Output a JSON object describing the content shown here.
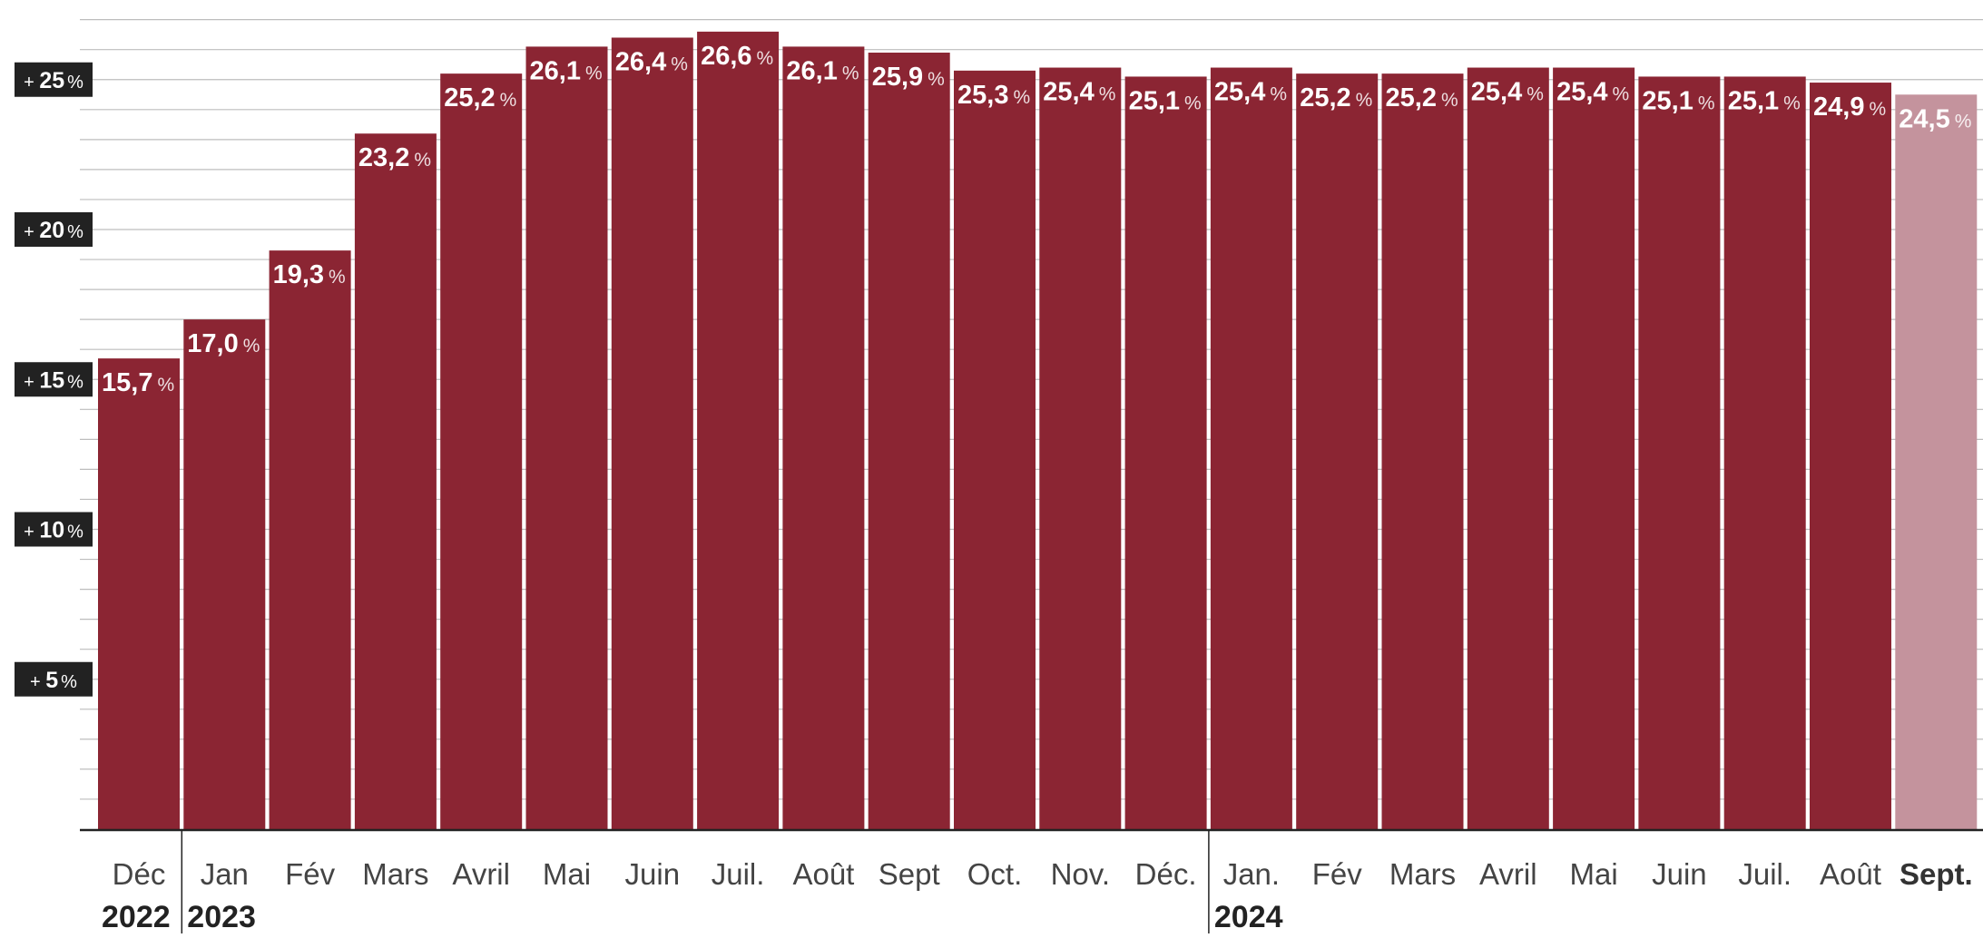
{
  "chart_data": {
    "type": "bar",
    "categories": [
      "Déc",
      "Jan",
      "Fév",
      "Mars",
      "Avril",
      "Mai",
      "Juin",
      "Juil.",
      "Août",
      "Sept",
      "Oct.",
      "Nov.",
      "Déc.",
      "Jan.",
      "Fév",
      "Mars",
      "Avril",
      "Mai",
      "Juin",
      "Juil.",
      "Août",
      "Sept."
    ],
    "values": [
      15.7,
      17.0,
      19.3,
      23.2,
      25.2,
      26.1,
      26.4,
      26.6,
      26.1,
      25.9,
      25.3,
      25.4,
      25.1,
      25.4,
      25.2,
      25.2,
      25.4,
      25.4,
      25.1,
      25.1,
      24.9,
      24.5
    ],
    "value_labels": [
      "15,7",
      "17,0",
      "19,3",
      "23,2",
      "25,2",
      "26,1",
      "26,4",
      "26,6",
      "26,1",
      "25,9",
      "25,3",
      "25,4",
      "25,1",
      "25,4",
      "25,2",
      "25,2",
      "25,4",
      "25,4",
      "25,1",
      "25,1",
      "24,9",
      "24,5"
    ],
    "unit": "%",
    "highlight_last": true,
    "year_labels": [
      {
        "year": "2022",
        "start_index": 0
      },
      {
        "year": "2023",
        "start_index": 1
      },
      {
        "year": "2024",
        "start_index": 13
      }
    ],
    "y_ticks": [
      {
        "prefix": "+",
        "value": "5",
        "unit": "%",
        "v": 5
      },
      {
        "prefix": "+",
        "value": "10",
        "unit": "%",
        "v": 10
      },
      {
        "prefix": "+",
        "value": "15",
        "unit": "%",
        "v": 15
      },
      {
        "prefix": "+",
        "value": "20",
        "unit": "%",
        "v": 20
      },
      {
        "prefix": "+",
        "value": "25",
        "unit": "%",
        "v": 25
      }
    ],
    "ylim": [
      0,
      27
    ],
    "grid": true,
    "colors": {
      "bar": "#8b2533",
      "bar_highlight": "#c4939d",
      "grid": "#bdbdbd",
      "axis": "#222222",
      "tick_box": "#222222"
    }
  }
}
